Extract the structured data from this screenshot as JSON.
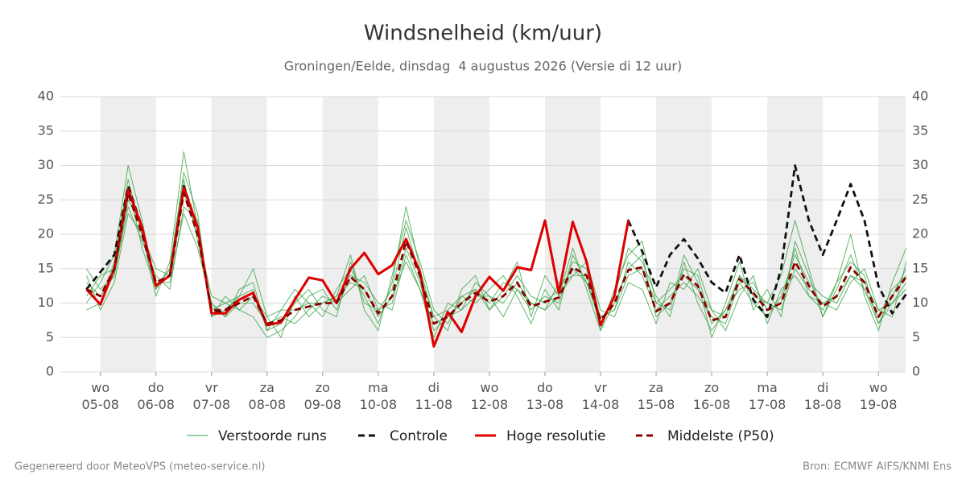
{
  "chart_data": {
    "type": "line",
    "title": "Windsnelheid (km/uur)",
    "subtitle": "Groningen/Eelde, dinsdag  4 augustus 2026 (Versie di 12 uur)",
    "footer_left": "Gegenereerd door MeteoVPS (meteo-service.nl)",
    "footer_right": "Bron: ECMWF AIFS/KNMI Ens",
    "xlim": [
      -0.72,
      14.49
    ],
    "xticks": [
      {
        "value": 0,
        "label": "wo 05-08"
      },
      {
        "value": 1,
        "label": "do 06-08"
      },
      {
        "value": 2,
        "label": "vr 07-08"
      },
      {
        "value": 3,
        "label": "za 08-08"
      },
      {
        "value": 4,
        "label": "zo 09-08"
      },
      {
        "value": 5,
        "label": "ma 10-08"
      },
      {
        "value": 6,
        "label": "di 11-08"
      },
      {
        "value": 7,
        "label": "wo 12-08"
      },
      {
        "value": 8,
        "label": "do 13-08"
      },
      {
        "value": 9,
        "label": "vr 14-08"
      },
      {
        "value": 10,
        "label": "za 15-08"
      },
      {
        "value": 11,
        "label": "zo 16-08"
      },
      {
        "value": 12,
        "label": "ma 17-08"
      },
      {
        "value": 13,
        "label": "di 18-08"
      },
      {
        "value": 14,
        "label": "wo 19-08"
      }
    ],
    "ylim": [
      0,
      40
    ],
    "yticks": [
      0,
      5,
      10,
      15,
      20,
      25,
      30,
      35,
      40
    ],
    "grid": true,
    "x": [
      -0.25,
      0,
      0.25,
      0.5,
      0.75,
      1,
      1.25,
      1.5,
      1.75,
      2,
      2.25,
      2.5,
      2.75,
      3,
      3.25,
      3.5,
      3.75,
      4,
      4.25,
      4.5,
      4.75,
      5,
      5.25,
      5.5,
      5.75,
      6,
      6.25,
      6.5,
      6.75,
      7,
      7.25,
      7.5,
      7.75,
      8,
      8.25,
      8.5,
      8.75,
      9,
      9.25,
      9.5,
      9.75,
      10,
      10.25,
      10.5,
      10.75,
      11,
      11.25,
      11.5,
      11.75,
      12,
      12.25,
      12.5,
      12.75,
      13,
      13.25,
      13.5,
      13.75,
      14,
      14.25,
      14.5
    ],
    "series": [
      {
        "name": "Verstoorde runs",
        "color": "#2e9e3a",
        "members": [
          [
            10,
            13,
            17,
            30,
            22,
            12,
            15,
            28,
            19,
            10,
            8,
            12,
            13,
            6,
            9,
            12,
            10,
            8,
            12,
            15,
            11,
            7,
            13,
            24,
            15,
            8,
            6,
            12,
            14,
            9,
            12,
            16,
            8,
            14,
            11,
            18,
            12,
            6,
            12,
            17,
            19,
            10,
            9,
            17,
            13,
            5,
            10,
            16,
            9,
            12,
            8,
            19,
            14,
            8,
            13,
            20,
            11,
            6,
            13,
            18
          ],
          [
            15,
            12,
            14,
            24,
            19,
            14,
            12,
            24,
            22,
            8,
            11,
            9,
            8,
            5,
            6,
            8,
            11,
            12,
            9,
            14,
            13,
            10,
            9,
            17,
            12,
            5,
            10,
            9,
            13,
            11,
            8,
            12,
            10,
            9,
            13,
            14,
            16,
            9,
            8,
            13,
            12,
            7,
            13,
            12,
            15,
            9,
            6,
            11,
            14,
            7,
            12,
            14,
            11,
            10,
            9,
            13,
            15,
            9,
            8,
            16
          ],
          [
            9,
            10,
            16,
            28,
            20,
            11,
            16,
            32,
            21,
            9,
            10,
            11,
            15,
            8,
            5,
            11,
            8,
            10,
            11,
            17,
            9,
            6,
            14,
            22,
            16,
            9,
            7,
            11,
            10,
            12,
            14,
            11,
            7,
            12,
            9,
            17,
            13,
            7,
            11,
            18,
            16,
            11,
            8,
            16,
            10,
            6,
            9,
            14,
            12,
            10,
            14,
            22,
            15,
            8,
            12,
            17,
            12,
            7,
            10,
            12
          ],
          [
            13,
            11,
            14,
            25,
            21,
            13,
            13,
            23,
            18,
            10,
            8,
            10,
            10,
            7,
            8,
            7,
            9,
            11,
            10,
            12,
            14,
            9,
            10,
            18,
            13,
            6,
            8,
            10,
            12,
            9,
            11,
            14,
            11,
            10,
            12,
            15,
            13,
            8,
            9,
            16,
            14,
            9,
            11,
            13,
            11,
            8,
            7,
            13,
            10,
            8,
            11,
            17,
            13,
            11,
            10,
            14,
            12,
            8,
            12,
            14
          ],
          [
            11,
            14,
            15,
            27,
            18,
            12,
            15,
            29,
            23,
            8,
            9,
            11,
            12,
            6,
            7,
            10,
            12,
            9,
            8,
            16,
            10,
            9,
            12,
            21,
            14,
            8,
            9,
            11,
            12,
            10,
            13,
            12,
            9,
            11,
            10,
            16,
            15,
            6,
            10,
            15,
            17,
            8,
            10,
            15,
            14,
            7,
            9,
            12,
            13,
            9,
            10,
            18,
            11,
            9,
            13,
            16,
            14,
            7,
            11,
            15
          ],
          [
            14,
            9,
            13,
            23,
            20,
            15,
            14,
            26,
            20,
            11,
            10,
            9,
            11,
            8,
            9,
            9,
            10,
            10,
            11,
            13,
            12,
            8,
            11,
            16,
            12,
            7,
            8,
            9,
            11,
            11,
            10,
            13,
            10,
            9,
            11,
            14,
            14,
            8,
            9,
            14,
            15,
            10,
            12,
            14,
            12,
            9,
            8,
            14,
            11,
            10,
            9,
            15,
            12,
            10,
            11,
            14,
            13,
            9,
            10,
            13
          ]
        ]
      },
      {
        "name": "Controle",
        "color": "#111111",
        "dash": true,
        "values": [
          12,
          14.5,
          17,
          27,
          21,
          12.5,
          14,
          27,
          21,
          8.5,
          9,
          10.5,
          11.5,
          6.8,
          7.2,
          10.5,
          13.7,
          13.3,
          10,
          15,
          17.3,
          14.2,
          15.5,
          19.3,
          14.5,
          3.7,
          8.7,
          5.8,
          11,
          13.8,
          11.8,
          15.2,
          14.8,
          22,
          11.5,
          21.8,
          16,
          6.8,
          11,
          22,
          17.5,
          12.3,
          17,
          19.3,
          16.5,
          13,
          11.5,
          17,
          10.5,
          8,
          15,
          30,
          22,
          17,
          22,
          27.3,
          22,
          12.5,
          8.5,
          11.3
        ]
      },
      {
        "name": "Hoge resolutie",
        "color": "#e00000",
        "values": [
          12,
          9.8,
          15,
          26.5,
          21,
          12.5,
          14,
          26.8,
          21,
          8.5,
          8.5,
          10.5,
          11.5,
          6.8,
          7.2,
          10.5,
          13.7,
          13.3,
          10,
          15,
          17.3,
          14.2,
          15.5,
          19.3,
          14.5,
          3.7,
          8.7,
          5.8,
          11,
          13.8,
          11.8,
          15.2,
          14.8,
          22,
          11.5,
          21.8,
          16,
          6.8,
          11,
          22,
          null,
          null,
          null,
          null,
          null,
          null,
          null,
          null,
          null,
          null,
          null,
          null,
          null,
          null,
          null,
          null,
          null,
          null,
          null,
          null
        ]
      },
      {
        "name": "Middelste (P50)",
        "color": "#8b0000",
        "dash": true,
        "values": [
          12,
          11,
          15,
          26,
          20,
          13,
          14,
          26,
          20,
          9,
          9,
          10,
          11,
          7,
          7.5,
          9,
          9.5,
          10,
          10,
          13.8,
          12,
          8.5,
          11,
          19,
          14,
          7,
          8,
          10,
          11.5,
          10.2,
          11,
          13,
          9.5,
          10.2,
          10.8,
          15.2,
          14,
          7.5,
          10,
          14.8,
          15.2,
          8.8,
          10,
          14.2,
          12.5,
          7.5,
          8,
          13.5,
          11.5,
          9,
          10,
          16,
          12.5,
          9.5,
          11,
          15.2,
          13,
          8,
          11,
          13.8
        ]
      }
    ]
  }
}
